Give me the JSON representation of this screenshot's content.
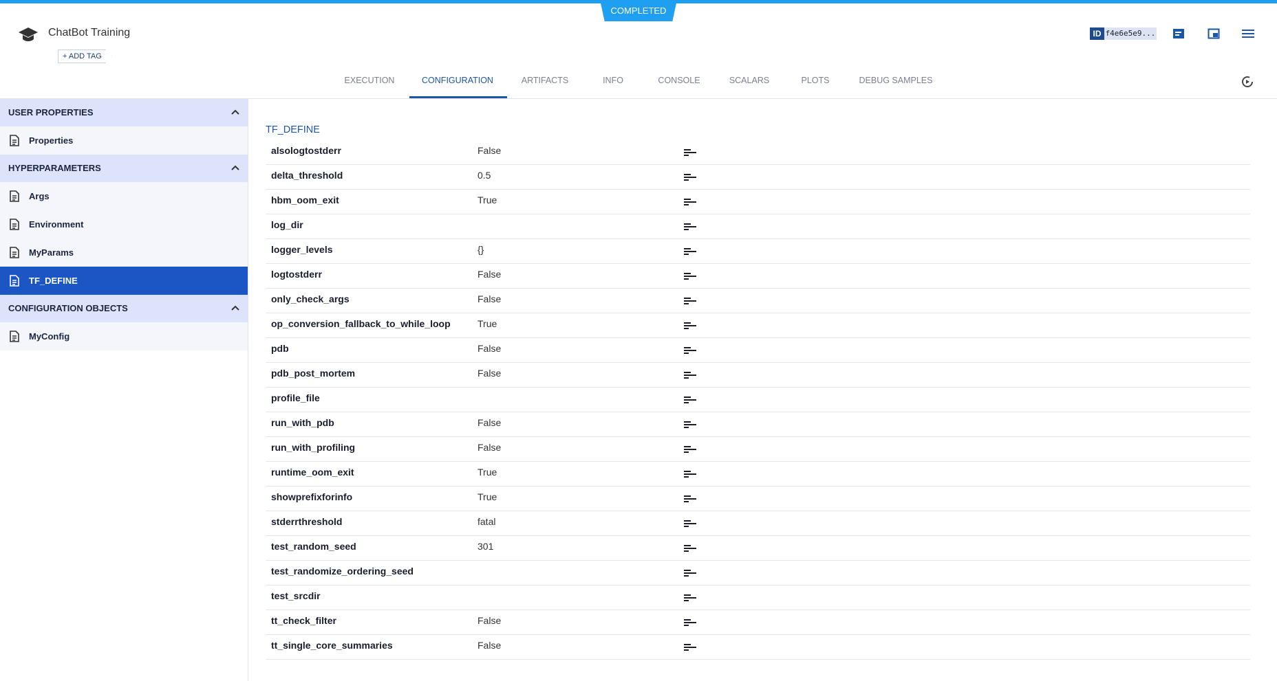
{
  "header": {
    "status": "COMPLETED",
    "title": "ChatBot Training",
    "add_tag": "+ ADD TAG",
    "id_label": "ID",
    "id_value": "f4e6e5e9..."
  },
  "tabs": [
    "EXECUTION",
    "CONFIGURATION",
    "ARTIFACTS",
    "INFO",
    "CONSOLE",
    "SCALARS",
    "PLOTS",
    "DEBUG SAMPLES"
  ],
  "active_tab": 1,
  "sidebar": [
    {
      "title": "USER PROPERTIES",
      "items": [
        "Properties"
      ]
    },
    {
      "title": "HYPERPARAMETERS",
      "items": [
        "Args",
        "Environment",
        "MyParams",
        "TF_DEFINE"
      ]
    },
    {
      "title": "CONFIGURATION OBJECTS",
      "items": [
        "MyConfig"
      ]
    }
  ],
  "selected_item": "TF_DEFINE",
  "main": {
    "title": "TF_DEFINE",
    "rows": [
      {
        "name": "alsologtostderr",
        "value": "False"
      },
      {
        "name": "delta_threshold",
        "value": "0.5"
      },
      {
        "name": "hbm_oom_exit",
        "value": "True"
      },
      {
        "name": "log_dir"
      },
      {
        "name": "logger_levels",
        "value": "{}"
      },
      {
        "name": "logtostderr",
        "value": "False"
      },
      {
        "name": "only_check_args",
        "value": "False"
      },
      {
        "name": "op_conversion_fallback_to_while_loop",
        "value": "True"
      },
      {
        "name": "pdb",
        "value": "False"
      },
      {
        "name": "pdb_post_mortem",
        "value": "False"
      },
      {
        "name": "profile_file"
      },
      {
        "name": "run_with_pdb",
        "value": "False"
      },
      {
        "name": "run_with_profiling",
        "value": "False"
      },
      {
        "name": "runtime_oom_exit",
        "value": "True"
      },
      {
        "name": "showprefixforinfo",
        "value": "True"
      },
      {
        "name": "stderrthreshold",
        "value": "fatal"
      },
      {
        "name": "test_random_seed",
        "value": "301"
      },
      {
        "name": "test_randomize_ordering_seed"
      },
      {
        "name": "test_srcdir"
      },
      {
        "name": "tt_check_filter",
        "value": "False"
      },
      {
        "name": "tt_single_core_summaries",
        "value": "False"
      }
    ]
  }
}
